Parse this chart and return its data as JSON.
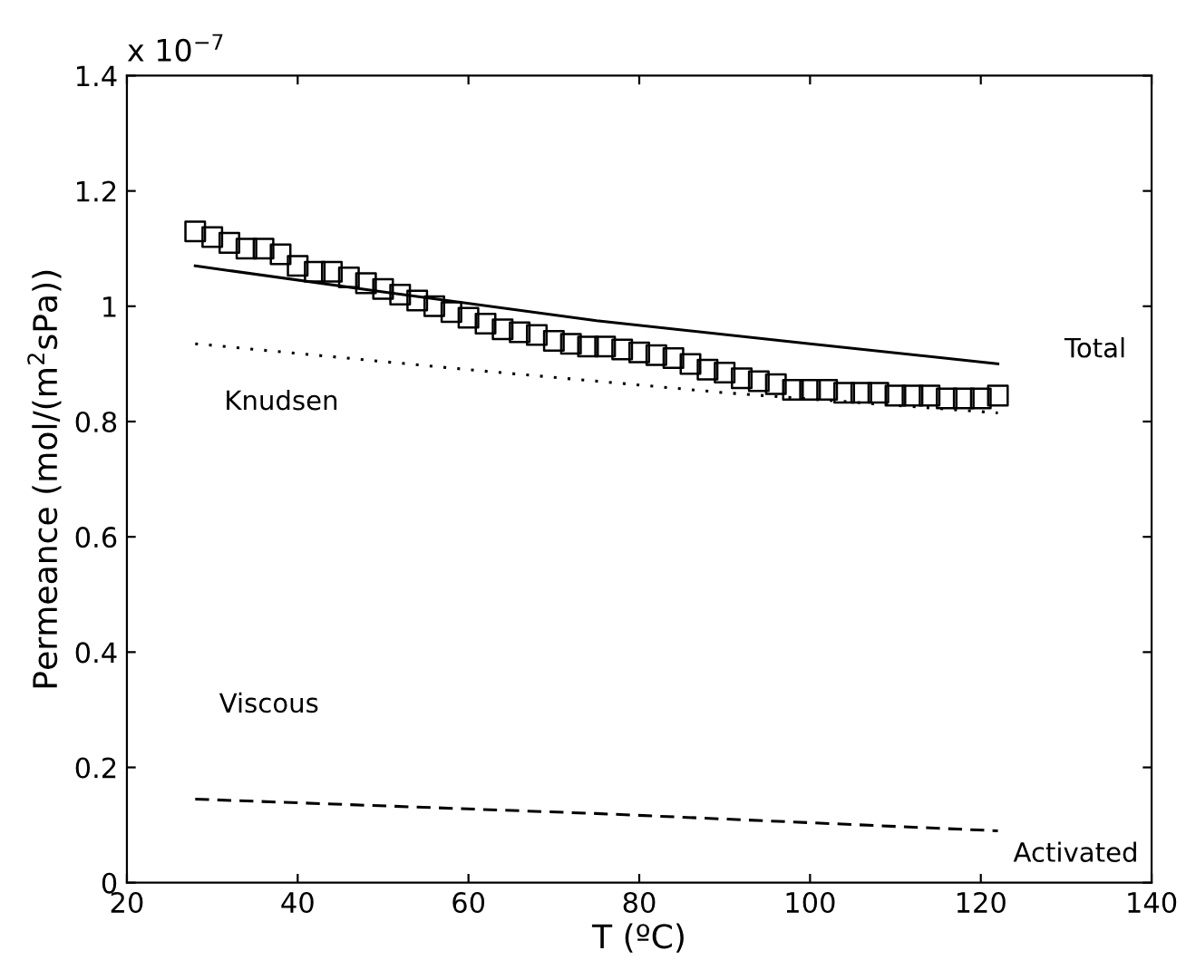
{
  "chart_data": {
    "type": "line",
    "xlabel": "T (ºC)",
    "ylabel": "Permeance (mol/(m$^{2}$sPa))",
    "xlim": [
      20,
      140
    ],
    "xticks": [
      20,
      40,
      60,
      80,
      100,
      120,
      140
    ],
    "ylim": [
      0,
      1.4
    ],
    "yticks": [
      0,
      0.2,
      0.4,
      0.6,
      0.8,
      1,
      1.2,
      1.4
    ],
    "grid": false,
    "legend": false,
    "annotations": [
      "x 10$^{−7}$",
      "Total",
      "Knudsen",
      "Viscous",
      "Activated"
    ],
    "series": [
      {
        "type": "scatter",
        "marker": "square",
        "color": "#000000",
        "x": [
          28,
          30,
          32,
          34,
          36,
          38,
          40,
          42,
          44,
          46,
          48,
          50,
          52,
          54,
          56,
          58,
          60,
          62,
          64,
          66,
          68,
          70,
          72,
          74,
          76,
          78,
          80,
          82,
          84,
          86,
          88,
          90,
          92,
          94,
          96,
          98,
          100,
          102,
          104,
          106,
          108,
          110,
          112,
          114,
          116,
          118,
          120,
          122
        ],
        "values": [
          1.13,
          1.12,
          1.11,
          1.1,
          1.1,
          1.09,
          1.07,
          1.06,
          1.06,
          1.05,
          1.04,
          1.03,
          1.02,
          1.01,
          1.0,
          0.99,
          0.98,
          0.97,
          0.96,
          0.955,
          0.95,
          0.94,
          0.935,
          0.93,
          0.93,
          0.925,
          0.92,
          0.915,
          0.91,
          0.9,
          0.89,
          0.885,
          0.875,
          0.87,
          0.865,
          0.855,
          0.855,
          0.855,
          0.85,
          0.85,
          0.85,
          0.845,
          0.845,
          0.845,
          0.84,
          0.84,
          0.84,
          0.845
        ]
      },
      {
        "line_style": "solid",
        "color": "#000000",
        "x": [
          28,
          50,
          75,
          100,
          122
        ],
        "values": [
          1.07,
          1.025,
          0.975,
          0.935,
          0.9
        ]
      },
      {
        "line_style": "dotted",
        "color": "#000000",
        "x": [
          28,
          60,
          90,
          122
        ],
        "values": [
          0.935,
          0.89,
          0.85,
          0.815
        ]
      },
      {
        "line_style": "dashed",
        "color": "#000000",
        "x": [
          28,
          75,
          122
        ],
        "values": [
          0.145,
          0.12,
          0.09
        ]
      }
    ]
  }
}
